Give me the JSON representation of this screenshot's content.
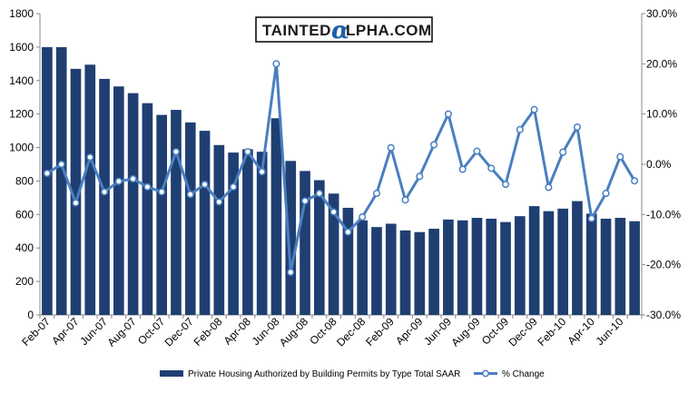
{
  "chart_data": {
    "type": "bar+line",
    "watermark": {
      "before": "TAINTED",
      "alpha": "α",
      "after": "LPHA.COM"
    },
    "x_tick_labels": [
      "Feb-07",
      "Apr-07",
      "Jun-07",
      "Aug-07",
      "Oct-07",
      "Dec-07",
      "Feb-08",
      "Apr-08",
      "Jun-08",
      "Aug-08",
      "Oct-08",
      "Dec-08",
      "Feb-09",
      "Apr-09",
      "Jun-09",
      "Aug-09",
      "Oct-09",
      "Dec-09",
      "Feb-10",
      "Apr-10",
      "Jun-10"
    ],
    "left_axis": {
      "min": 0,
      "max": 1800,
      "step": 200,
      "tick_labels": [
        "0",
        "200",
        "400",
        "600",
        "800",
        "1000",
        "1200",
        "1400",
        "1600",
        "1800"
      ]
    },
    "right_axis": {
      "min": -30,
      "max": 30,
      "step": 10,
      "tick_labels": [
        "-30.0%",
        "-20.0%",
        "-10.0%",
        "0.0%",
        "10.0%",
        "20.0%",
        "30.0%"
      ]
    },
    "series": [
      {
        "name": "Private Housing Authorized by Building Permits by Type Total SAAR",
        "kind": "bar",
        "axis": "left",
        "color": "#1f3f73",
        "values": [
          1600,
          1600,
          1470,
          1495,
          1410,
          1365,
          1325,
          1265,
          1195,
          1225,
          1150,
          1100,
          1015,
          970,
          990,
          975,
          1175,
          920,
          860,
          805,
          725,
          640,
          565,
          525,
          545,
          505,
          495,
          515,
          570,
          565,
          580,
          575,
          555,
          590,
          650,
          620,
          635,
          680,
          605,
          575,
          580,
          560
        ]
      },
      {
        "name": "% Change",
        "kind": "line",
        "axis": "right",
        "color": "#4a7fc0",
        "values": [
          -1.8,
          0.0,
          -7.7,
          1.4,
          -5.5,
          -3.4,
          -2.9,
          -4.5,
          -5.5,
          2.5,
          -6.0,
          -4.0,
          -7.5,
          -4.5,
          2.5,
          -1.5,
          20.0,
          -21.5,
          -7.3,
          -5.8,
          -9.5,
          -13.5,
          -10.5,
          -5.8,
          3.3,
          -7.1,
          -2.4,
          3.9,
          10.0,
          -1.0,
          2.6,
          -0.8,
          -4.0,
          6.9,
          10.9,
          -4.6,
          2.4,
          7.4,
          -10.8,
          -5.8,
          1.5,
          -3.3
        ]
      }
    ],
    "legend_position": "bottom-center",
    "grid": false
  }
}
